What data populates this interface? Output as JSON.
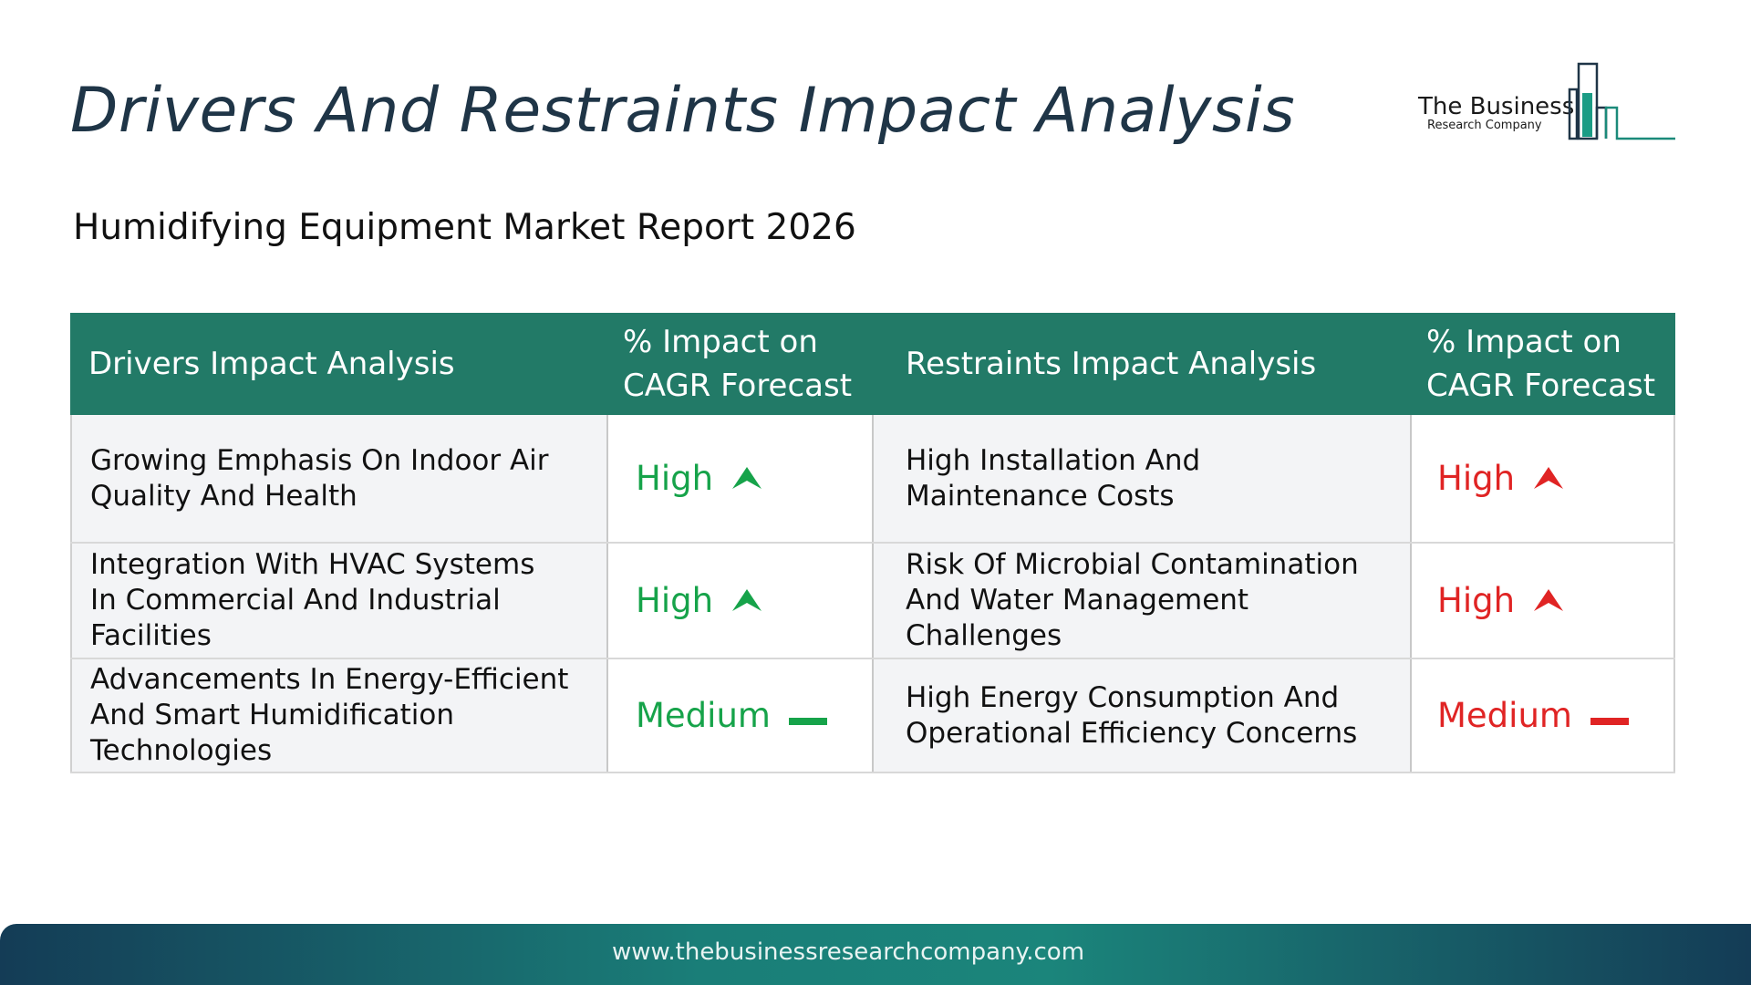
{
  "title": "Drivers And Restraints Impact Analysis",
  "subtitle": "Humidifying Equipment Market Report 2026",
  "logo": {
    "line1": "The Business",
    "line2": "Research Company"
  },
  "colors": {
    "header_bg": "#227a67",
    "driver_impact": "#16a34a",
    "restraint_impact": "#e02424"
  },
  "table": {
    "headers": {
      "drivers": "Drivers Impact Analysis",
      "drivers_impact_line1": "% Impact on",
      "drivers_impact_line2": "CAGR Forecast",
      "restraints": "Restraints Impact Analysis",
      "restraints_impact_line1": "% Impact on",
      "restraints_impact_line2": "CAGR Forecast"
    },
    "rows": [
      {
        "driver_line1": "Growing Emphasis On Indoor Air",
        "driver_line2": "Quality And Health",
        "driver_line3": "",
        "driver_impact": "High",
        "driver_icon": "arrow-up-icon",
        "restraint_line1": "High Installation And",
        "restraint_line2": "Maintenance Costs",
        "restraint_line3": "",
        "restraint_impact": "High",
        "restraint_icon": "arrow-up-icon"
      },
      {
        "driver_line1": "Integration With HVAC Systems",
        "driver_line2": "In Commercial And Industrial",
        "driver_line3": "Facilities",
        "driver_impact": "High",
        "driver_icon": "arrow-up-icon",
        "restraint_line1": "Risk Of Microbial Contamination",
        "restraint_line2": "And Water Management",
        "restraint_line3": "Challenges",
        "restraint_impact": "High",
        "restraint_icon": "arrow-up-icon"
      },
      {
        "driver_line1": "Advancements In Energy-Efficient",
        "driver_line2": "And Smart Humidification",
        "driver_line3": "Technologies",
        "driver_impact": "Medium",
        "driver_icon": "dash-icon",
        "restraint_line1": "High Energy Consumption And",
        "restraint_line2": "Operational Efficiency Concerns",
        "restraint_line3": "",
        "restraint_impact": "Medium",
        "restraint_icon": "dash-icon"
      }
    ]
  },
  "footer": {
    "url": "www.thebusinessresearchcompany.com"
  }
}
